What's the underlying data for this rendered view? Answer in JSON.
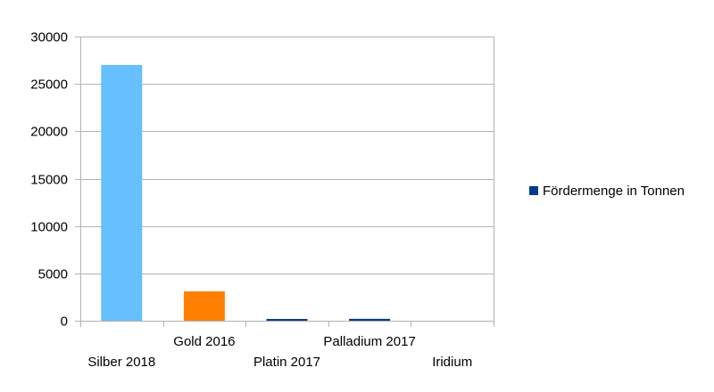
{
  "chart_data": {
    "type": "bar",
    "categories": [
      "Silber 2018",
      "Gold 2016",
      "Platin 2017",
      "Palladium 2017",
      "Iridium"
    ],
    "series": [
      {
        "name": "Fördermenge in Tonnen",
        "values": [
          27000,
          3100,
          150,
          200,
          0
        ]
      }
    ],
    "bar_colors": [
      "#66bfff",
      "#ff8000",
      "#003c8c",
      "#003c8c",
      "#003c8c"
    ],
    "legend_color": "#003c8c",
    "ylim": [
      0,
      30000
    ],
    "yticks": [
      0,
      5000,
      10000,
      15000,
      20000,
      25000,
      30000
    ],
    "grid": true,
    "legend_position": "right",
    "title": "",
    "xlabel": "",
    "ylabel": ""
  }
}
